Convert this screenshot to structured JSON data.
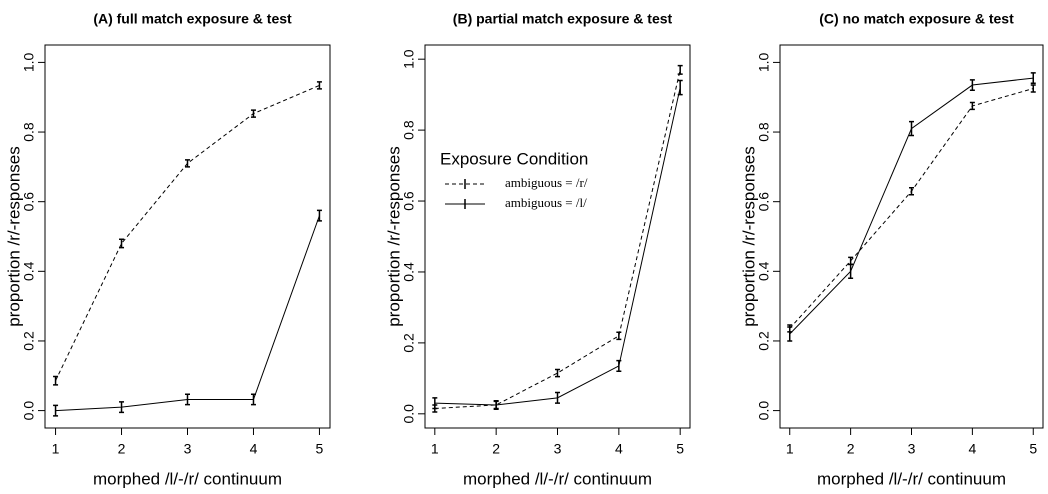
{
  "chart_data": [
    {
      "type": "line",
      "title": "(A) full match exposure & test",
      "xlabel": "morphed /l/-/r/ continuum",
      "ylabel": "proportion /r/-responses",
      "x": [
        1,
        2,
        3,
        4,
        5
      ],
      "xlim": [
        0.84,
        5.16
      ],
      "xticks": [
        1,
        2,
        3,
        4,
        5
      ],
      "ylim": [
        -0.05,
        1.05
      ],
      "yticks": [
        {
          "value": 0,
          "label": "0.0"
        },
        0.2,
        0.4,
        0.6,
        0.8,
        {
          "value": 1,
          "label": "1.0"
        }
      ],
      "series": [
        {
          "name": "ambiguous = /r/",
          "color": "#000000",
          "dash": "dashed",
          "values": [
            0.086,
            0.48,
            0.71,
            0.853,
            0.934
          ],
          "errors": [
            0.012,
            0.012,
            0.01,
            0.01,
            0.01
          ]
        },
        {
          "name": "ambiguous = /l/",
          "color": "#000000",
          "dash": "solid",
          "values": [
            0.0,
            0.01,
            0.032,
            0.032,
            0.56
          ],
          "errors": [
            0.015,
            0.015,
            0.015,
            0.015,
            0.015
          ]
        }
      ]
    },
    {
      "type": "line",
      "title": "(B) partial match exposure & test",
      "xlabel": "morphed /l/-/r/ continuum",
      "ylabel": "proportion /r/-responses",
      "x": [
        1,
        2,
        3,
        4,
        5
      ],
      "xlim": [
        0.84,
        5.16
      ],
      "xticks": [
        1,
        2,
        3,
        4,
        5
      ],
      "ylim": [
        -0.04,
        1.04
      ],
      "yticks": [
        {
          "value": 0,
          "label": "0.0"
        },
        0.2,
        0.4,
        0.6,
        0.8,
        {
          "value": 1,
          "label": "1.0"
        }
      ],
      "legend_title": "Exposure Condition",
      "series": [
        {
          "name": "ambiguous = /r/",
          "color": "#000000",
          "dash": "dashed",
          "values": [
            0.015,
            0.025,
            0.115,
            0.22,
            0.97
          ],
          "errors": [
            0.01,
            0.01,
            0.01,
            0.01,
            0.012
          ]
        },
        {
          "name": "ambiguous = /l/",
          "color": "#000000",
          "dash": "solid",
          "values": [
            0.03,
            0.025,
            0.045,
            0.135,
            0.92
          ],
          "errors": [
            0.015,
            0.012,
            0.015,
            0.015,
            0.02
          ]
        }
      ]
    },
    {
      "type": "line",
      "title": "(C) no match exposure & test",
      "xlabel": "morphed /l/-/r/ continuum",
      "ylabel": "proportion /r/-responses",
      "x": [
        1,
        2,
        3,
        4,
        5
      ],
      "xlim": [
        0.84,
        5.16
      ],
      "xticks": [
        1,
        2,
        3,
        4,
        5
      ],
      "ylim": [
        -0.05,
        1.05
      ],
      "yticks": [
        {
          "value": 0,
          "label": "0.0"
        },
        0.2,
        0.4,
        0.6,
        0.8,
        {
          "value": 1,
          "label": "1.0"
        }
      ],
      "series": [
        {
          "name": "ambiguous = /r/",
          "color": "#000000",
          "dash": "dashed",
          "values": [
            0.236,
            0.43,
            0.63,
            0.875,
            0.925
          ],
          "errors": [
            0.01,
            0.01,
            0.01,
            0.01,
            0.01
          ]
        },
        {
          "name": "ambiguous = /l/",
          "color": "#000000",
          "dash": "solid",
          "values": [
            0.22,
            0.4,
            0.81,
            0.935,
            0.955
          ],
          "errors": [
            0.02,
            0.02,
            0.02,
            0.015,
            0.015
          ]
        }
      ]
    }
  ]
}
